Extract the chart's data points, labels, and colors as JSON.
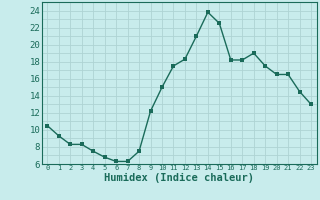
{
  "xlabel": "Humidex (Indice chaleur)",
  "x": [
    0,
    1,
    2,
    3,
    4,
    5,
    6,
    7,
    8,
    9,
    10,
    11,
    12,
    13,
    14,
    15,
    16,
    17,
    18,
    19,
    20,
    21,
    22,
    23
  ],
  "y": [
    10.5,
    9.3,
    8.3,
    8.3,
    7.5,
    6.8,
    6.3,
    6.3,
    7.5,
    12.2,
    15.0,
    17.5,
    18.3,
    21.0,
    23.8,
    22.5,
    18.2,
    18.2,
    19.0,
    17.5,
    16.5,
    16.5,
    14.5,
    13.0
  ],
  "line_color": "#1a6b5a",
  "marker_color": "#1a6b5a",
  "bg_color": "#c8ecec",
  "grid_color": "#aed4d4",
  "xlim": [
    -0.5,
    23.5
  ],
  "ylim": [
    6,
    25
  ],
  "yticks": [
    6,
    8,
    10,
    12,
    14,
    16,
    18,
    20,
    22,
    24
  ],
  "xticks": [
    0,
    1,
    2,
    3,
    4,
    5,
    6,
    7,
    8,
    9,
    10,
    11,
    12,
    13,
    14,
    15,
    16,
    17,
    18,
    19,
    20,
    21,
    22,
    23
  ],
  "xlabel_fontsize": 7.5,
  "tick_fontsize_x": 5.0,
  "tick_fontsize_y": 6.5,
  "tick_color": "#1a6b5a"
}
